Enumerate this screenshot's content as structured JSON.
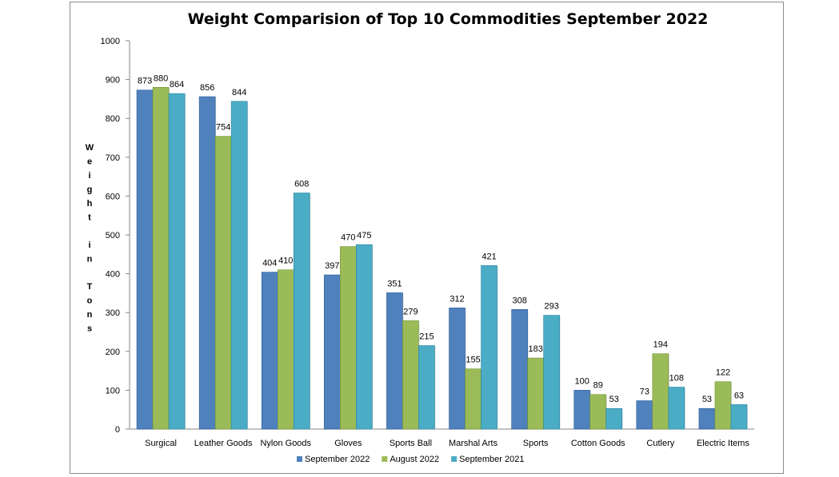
{
  "chart_data": {
    "type": "bar",
    "title": "Weight Comparision of Top 10 Commodities  September 2022",
    "ylabel": "Weight in Tons",
    "xlabel": "",
    "ylim": [
      0,
      1000
    ],
    "yticks": [
      0,
      100,
      200,
      300,
      400,
      500,
      600,
      700,
      800,
      900,
      1000
    ],
    "grid": false,
    "legend_position": "bottom",
    "categories": [
      "Surgical",
      "Leather Goods",
      "Nylon Goods",
      "Gloves",
      "Sports Ball",
      "Marshal Arts",
      "Sports",
      "Cotton Goods",
      "Cutlery",
      "Electric Items"
    ],
    "series": [
      {
        "name": "September 2022",
        "color": "#4f81bd",
        "values": [
          873,
          856,
          404,
          397,
          351,
          312,
          308,
          100,
          73,
          53
        ]
      },
      {
        "name": "August 2022",
        "color": "#9bbb59",
        "values": [
          880,
          754,
          410,
          470,
          279,
          155,
          183,
          89,
          194,
          122
        ]
      },
      {
        "name": "September 2021",
        "color": "#4bacc6",
        "values": [
          864,
          844,
          608,
          475,
          215,
          421,
          293,
          53,
          108,
          63
        ]
      }
    ]
  }
}
